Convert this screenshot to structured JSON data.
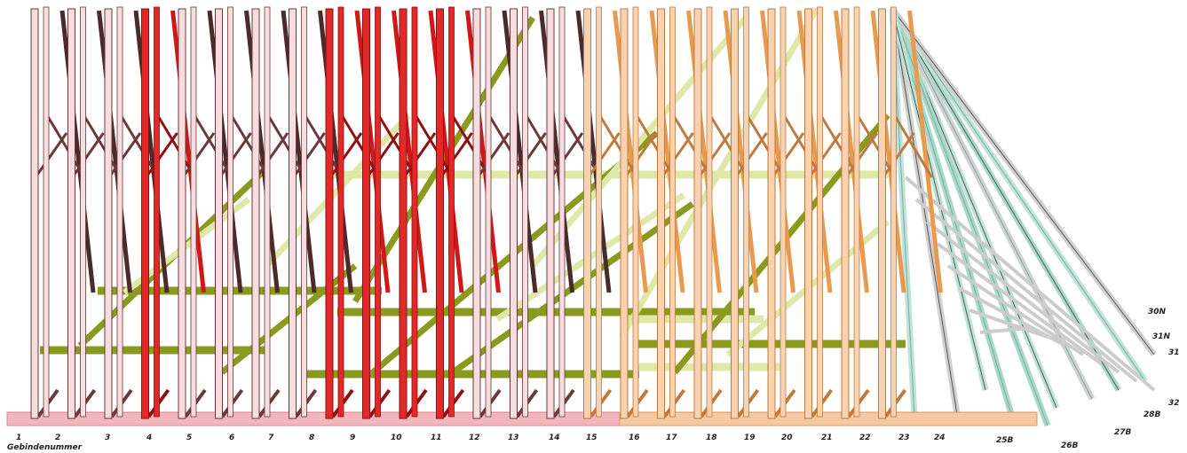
{
  "axis_title": "Gebindenummer",
  "frames": [
    "1",
    "2",
    "3",
    "4",
    "5",
    "6",
    "7",
    "8",
    "9",
    "10",
    "11",
    "12",
    "13",
    "14",
    "15",
    "16",
    "17",
    "18",
    "19",
    "20",
    "21",
    "22",
    "23",
    "24"
  ],
  "extra_frames": [
    "25B",
    "26B",
    "27B",
    "28B"
  ],
  "side_labels": [
    "30N",
    "31N",
    "31",
    "32"
  ]
}
